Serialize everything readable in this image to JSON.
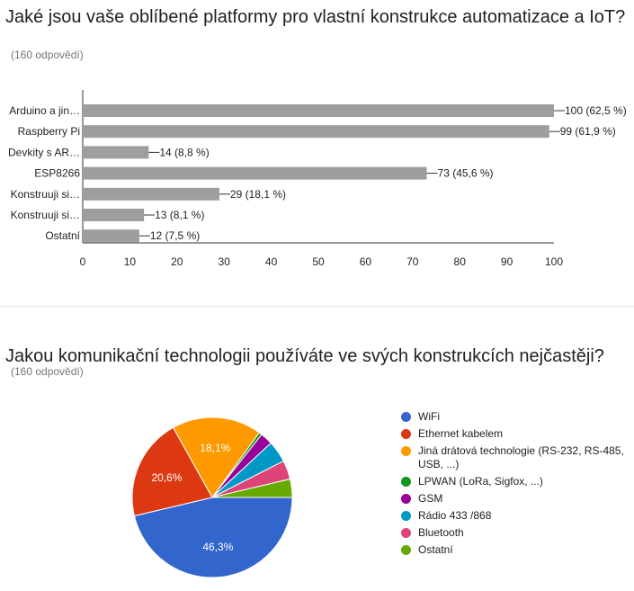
{
  "questions": [
    {
      "title": "Jaké jsou vaše oblíbené platformy pro vlastní konstrukce automatizace a IoT?",
      "response_count": "(160 odpovědí)"
    },
    {
      "title": "Jakou komunikační technologii používáte ve svých konstrukcích nejčastěji?",
      "response_count": "(160 odpovědí)"
    }
  ],
  "chart_data": [
    {
      "type": "bar",
      "orientation": "horizontal",
      "categories": [
        "Arduino a jin…",
        "Raspberry Pi",
        "Devkity s AR…",
        "ESP8266",
        "Konstruuji si…",
        "Konstruuji si…",
        "Ostatní"
      ],
      "values": [
        100,
        99,
        14,
        73,
        29,
        13,
        12
      ],
      "data_labels": [
        "100 (62,5 %)",
        "99 (61,9 %)",
        "14 (8,8 %)",
        "73 (45,6 %)",
        "29 (18,1 %)",
        "13 (8,1 %)",
        "12 (7,5 %)"
      ],
      "xlim": [
        0,
        100
      ],
      "xticks": [
        "0",
        "10",
        "20",
        "30",
        "40",
        "50",
        "60",
        "70",
        "80",
        "90",
        "100"
      ],
      "bar_color": "#9e9e9e",
      "grid": false
    },
    {
      "type": "pie",
      "labels": [
        "WiFi",
        "Ethernet kabelem",
        "Jiná drátová technologie (RS-232, RS-485, USB, ...)",
        "LPWAN (LoRa, Sigfox, ...)",
        "GSM",
        "Rádio 433 /868",
        "Bluetooth",
        "Ostatní"
      ],
      "values": [
        46.3,
        20.6,
        18.1,
        0.6,
        2.5,
        4.4,
        3.8,
        3.7
      ],
      "slice_labels": [
        "46,3%",
        "20,6%",
        "18,1%",
        "",
        "",
        "",
        "",
        ""
      ],
      "colors": [
        "#3366cc",
        "#dc3912",
        "#ff9900",
        "#109618",
        "#990099",
        "#0099c6",
        "#dd4477",
        "#66aa00"
      ],
      "legend_position": "right"
    }
  ]
}
